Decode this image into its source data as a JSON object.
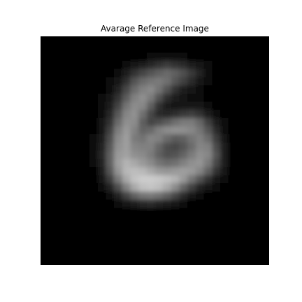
{
  "chart_data": {
    "type": "heatmap",
    "title": "Avarage Reference Image",
    "xlabel": "",
    "ylabel": "",
    "colormap": "gray",
    "axes_visible": false,
    "grid": false,
    "vmin": 0,
    "vmax": 1,
    "z": [
      [
        0,
        0,
        0,
        0,
        0,
        0,
        0,
        0,
        0,
        0,
        0,
        0,
        0,
        0,
        0,
        0,
        0,
        0,
        0,
        0,
        0,
        0,
        0,
        0,
        0,
        0,
        0,
        0
      ],
      [
        0,
        0,
        0,
        0,
        0,
        0,
        0,
        0,
        0,
        0,
        0,
        0,
        0,
        0,
        0,
        0,
        0,
        0,
        0,
        0,
        0,
        0,
        0,
        0,
        0,
        0,
        0,
        0
      ],
      [
        0,
        0,
        0,
        0,
        0,
        0,
        0,
        0,
        0,
        0,
        0,
        0.01,
        0.02,
        0.03,
        0.04,
        0.05,
        0.04,
        0.03,
        0.02,
        0.01,
        0,
        0,
        0,
        0,
        0,
        0,
        0,
        0
      ],
      [
        0,
        0,
        0,
        0,
        0,
        0,
        0,
        0,
        0,
        0.02,
        0.04,
        0.07,
        0.11,
        0.15,
        0.2,
        0.23,
        0.2,
        0.16,
        0.11,
        0.07,
        0.03,
        0.01,
        0,
        0,
        0,
        0,
        0,
        0
      ],
      [
        0,
        0,
        0,
        0,
        0,
        0,
        0,
        0,
        0.02,
        0.05,
        0.1,
        0.19,
        0.27,
        0.33,
        0.38,
        0.41,
        0.37,
        0.31,
        0.22,
        0.13,
        0.06,
        0.02,
        0,
        0,
        0,
        0,
        0,
        0
      ],
      [
        0,
        0,
        0,
        0,
        0,
        0,
        0,
        0.01,
        0.04,
        0.08,
        0.18,
        0.32,
        0.41,
        0.46,
        0.48,
        0.44,
        0.33,
        0.25,
        0.16,
        0.09,
        0.04,
        0.01,
        0,
        0,
        0,
        0,
        0,
        0
      ],
      [
        0,
        0,
        0,
        0,
        0,
        0,
        0,
        0.02,
        0.06,
        0.13,
        0.28,
        0.42,
        0.5,
        0.54,
        0.45,
        0.32,
        0.19,
        0.12,
        0.08,
        0.05,
        0.02,
        0.01,
        0,
        0,
        0,
        0,
        0,
        0
      ],
      [
        0,
        0,
        0,
        0,
        0,
        0,
        0,
        0.03,
        0.08,
        0.19,
        0.36,
        0.5,
        0.56,
        0.48,
        0.32,
        0.18,
        0.1,
        0.07,
        0.05,
        0.04,
        0.02,
        0.01,
        0,
        0,
        0,
        0,
        0,
        0
      ],
      [
        0,
        0,
        0,
        0,
        0,
        0,
        0.01,
        0.04,
        0.11,
        0.26,
        0.45,
        0.55,
        0.53,
        0.37,
        0.2,
        0.11,
        0.08,
        0.08,
        0.08,
        0.07,
        0.04,
        0.02,
        0.01,
        0,
        0,
        0,
        0,
        0
      ],
      [
        0,
        0,
        0,
        0,
        0,
        0,
        0.01,
        0.05,
        0.15,
        0.35,
        0.52,
        0.57,
        0.44,
        0.28,
        0.17,
        0.15,
        0.18,
        0.22,
        0.24,
        0.2,
        0.12,
        0.05,
        0.01,
        0,
        0,
        0,
        0,
        0
      ],
      [
        0,
        0,
        0,
        0,
        0,
        0,
        0.02,
        0.07,
        0.2,
        0.42,
        0.56,
        0.55,
        0.37,
        0.27,
        0.3,
        0.36,
        0.43,
        0.48,
        0.48,
        0.4,
        0.25,
        0.11,
        0.03,
        0,
        0,
        0,
        0,
        0
      ],
      [
        0,
        0,
        0,
        0,
        0,
        0,
        0.02,
        0.09,
        0.25,
        0.49,
        0.6,
        0.51,
        0.39,
        0.41,
        0.5,
        0.55,
        0.57,
        0.56,
        0.53,
        0.46,
        0.33,
        0.16,
        0.05,
        0.01,
        0,
        0,
        0,
        0
      ],
      [
        0,
        0,
        0,
        0,
        0,
        0,
        0.03,
        0.12,
        0.3,
        0.54,
        0.62,
        0.48,
        0.45,
        0.52,
        0.5,
        0.42,
        0.36,
        0.38,
        0.45,
        0.5,
        0.42,
        0.23,
        0.07,
        0.01,
        0,
        0,
        0,
        0
      ],
      [
        0,
        0,
        0,
        0,
        0,
        0,
        0.03,
        0.14,
        0.34,
        0.57,
        0.62,
        0.52,
        0.5,
        0.5,
        0.4,
        0.3,
        0.28,
        0.32,
        0.42,
        0.52,
        0.5,
        0.29,
        0.1,
        0.02,
        0,
        0,
        0,
        0
      ],
      [
        0,
        0,
        0,
        0,
        0,
        0,
        0.03,
        0.15,
        0.37,
        0.6,
        0.63,
        0.56,
        0.54,
        0.48,
        0.38,
        0.31,
        0.32,
        0.39,
        0.48,
        0.56,
        0.53,
        0.32,
        0.11,
        0.02,
        0,
        0,
        0,
        0
      ],
      [
        0,
        0,
        0,
        0,
        0,
        0,
        0.03,
        0.14,
        0.37,
        0.62,
        0.7,
        0.66,
        0.6,
        0.54,
        0.46,
        0.42,
        0.44,
        0.5,
        0.56,
        0.58,
        0.48,
        0.28,
        0.1,
        0.02,
        0,
        0,
        0,
        0
      ],
      [
        0,
        0,
        0,
        0,
        0,
        0,
        0.02,
        0.12,
        0.33,
        0.58,
        0.72,
        0.74,
        0.72,
        0.66,
        0.6,
        0.58,
        0.6,
        0.62,
        0.6,
        0.52,
        0.38,
        0.2,
        0.07,
        0.01,
        0,
        0,
        0,
        0
      ],
      [
        0,
        0,
        0,
        0,
        0,
        0,
        0.01,
        0.08,
        0.24,
        0.47,
        0.66,
        0.76,
        0.8,
        0.8,
        0.78,
        0.75,
        0.7,
        0.6,
        0.46,
        0.32,
        0.2,
        0.09,
        0.03,
        0,
        0,
        0,
        0,
        0
      ],
      [
        0,
        0,
        0,
        0,
        0,
        0,
        0,
        0.04,
        0.13,
        0.3,
        0.5,
        0.66,
        0.75,
        0.77,
        0.74,
        0.66,
        0.54,
        0.39,
        0.25,
        0.14,
        0.07,
        0.03,
        0.01,
        0,
        0,
        0,
        0,
        0
      ],
      [
        0,
        0,
        0,
        0,
        0,
        0,
        0,
        0.01,
        0.05,
        0.13,
        0.26,
        0.38,
        0.45,
        0.47,
        0.44,
        0.37,
        0.27,
        0.17,
        0.09,
        0.05,
        0.02,
        0.01,
        0,
        0,
        0,
        0,
        0,
        0
      ],
      [
        0,
        0,
        0,
        0,
        0,
        0,
        0,
        0,
        0.01,
        0.03,
        0.07,
        0.12,
        0.15,
        0.16,
        0.14,
        0.11,
        0.07,
        0.04,
        0.02,
        0.01,
        0,
        0,
        0,
        0,
        0,
        0,
        0,
        0
      ],
      [
        0,
        0,
        0,
        0,
        0,
        0,
        0,
        0,
        0,
        0,
        0.01,
        0.02,
        0.02,
        0.02,
        0.02,
        0.01,
        0.01,
        0,
        0,
        0,
        0,
        0,
        0,
        0,
        0,
        0,
        0,
        0
      ],
      [
        0,
        0,
        0,
        0,
        0,
        0,
        0,
        0,
        0,
        0,
        0,
        0,
        0,
        0,
        0,
        0,
        0,
        0,
        0,
        0,
        0,
        0,
        0,
        0,
        0,
        0,
        0,
        0
      ],
      [
        0,
        0,
        0,
        0,
        0,
        0,
        0,
        0,
        0,
        0,
        0,
        0,
        0,
        0,
        0,
        0,
        0,
        0,
        0,
        0,
        0,
        0,
        0,
        0,
        0,
        0,
        0,
        0
      ],
      [
        0,
        0,
        0,
        0,
        0,
        0,
        0,
        0,
        0,
        0,
        0,
        0,
        0,
        0,
        0,
        0,
        0,
        0,
        0,
        0,
        0,
        0,
        0,
        0,
        0,
        0,
        0,
        0
      ],
      [
        0,
        0,
        0,
        0,
        0,
        0,
        0,
        0,
        0,
        0,
        0,
        0,
        0,
        0,
        0,
        0,
        0,
        0,
        0,
        0,
        0,
        0,
        0,
        0,
        0,
        0,
        0,
        0
      ],
      [
        0,
        0,
        0,
        0,
        0,
        0,
        0,
        0,
        0,
        0,
        0,
        0,
        0,
        0,
        0,
        0,
        0,
        0,
        0,
        0,
        0,
        0,
        0,
        0,
        0,
        0,
        0,
        0
      ],
      [
        0,
        0,
        0,
        0,
        0,
        0,
        0,
        0,
        0,
        0,
        0,
        0,
        0,
        0,
        0,
        0,
        0,
        0,
        0,
        0,
        0,
        0,
        0,
        0,
        0,
        0,
        0,
        0
      ]
    ]
  }
}
